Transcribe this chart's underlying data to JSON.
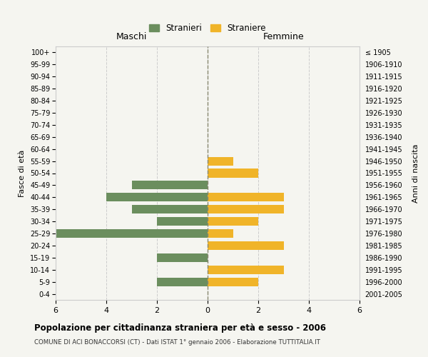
{
  "age_groups": [
    "0-4",
    "5-9",
    "10-14",
    "15-19",
    "20-24",
    "25-29",
    "30-34",
    "35-39",
    "40-44",
    "45-49",
    "50-54",
    "55-59",
    "60-64",
    "65-69",
    "70-74",
    "75-79",
    "80-84",
    "85-89",
    "90-94",
    "95-99",
    "100+"
  ],
  "birth_years": [
    "2001-2005",
    "1996-2000",
    "1991-1995",
    "1986-1990",
    "1981-1985",
    "1976-1980",
    "1971-1975",
    "1966-1970",
    "1961-1965",
    "1956-1960",
    "1951-1955",
    "1946-1950",
    "1941-1945",
    "1936-1940",
    "1931-1935",
    "1926-1930",
    "1921-1925",
    "1916-1920",
    "1911-1915",
    "1906-1910",
    "≤ 1905"
  ],
  "maschi": [
    0,
    2,
    0,
    2,
    0,
    6,
    2,
    3,
    4,
    3,
    0,
    0,
    0,
    0,
    0,
    0,
    0,
    0,
    0,
    0,
    0
  ],
  "femmine": [
    0,
    2,
    3,
    0,
    3,
    1,
    2,
    3,
    3,
    0,
    2,
    1,
    0,
    0,
    0,
    0,
    0,
    0,
    0,
    0,
    0
  ],
  "color_maschi": "#6b8e5e",
  "color_femmine": "#f0b429",
  "title": "Popolazione per cittadinanza straniera per età e sesso - 2006",
  "subtitle": "COMUNE DI ACI BONACCORSI (CT) - Dati ISTAT 1° gennaio 2006 - Elaborazione TUTTITALIA.IT",
  "ylabel_left": "Fasce di età",
  "ylabel_right": "Anni di nascita",
  "xlim": 6,
  "legend_stranieri": "Stranieri",
  "legend_straniere": "Straniere",
  "bg_color": "#f5f5f0",
  "grid_color": "#cccccc",
  "maschi_label": "Maschi",
  "femmine_label": "Femmine"
}
